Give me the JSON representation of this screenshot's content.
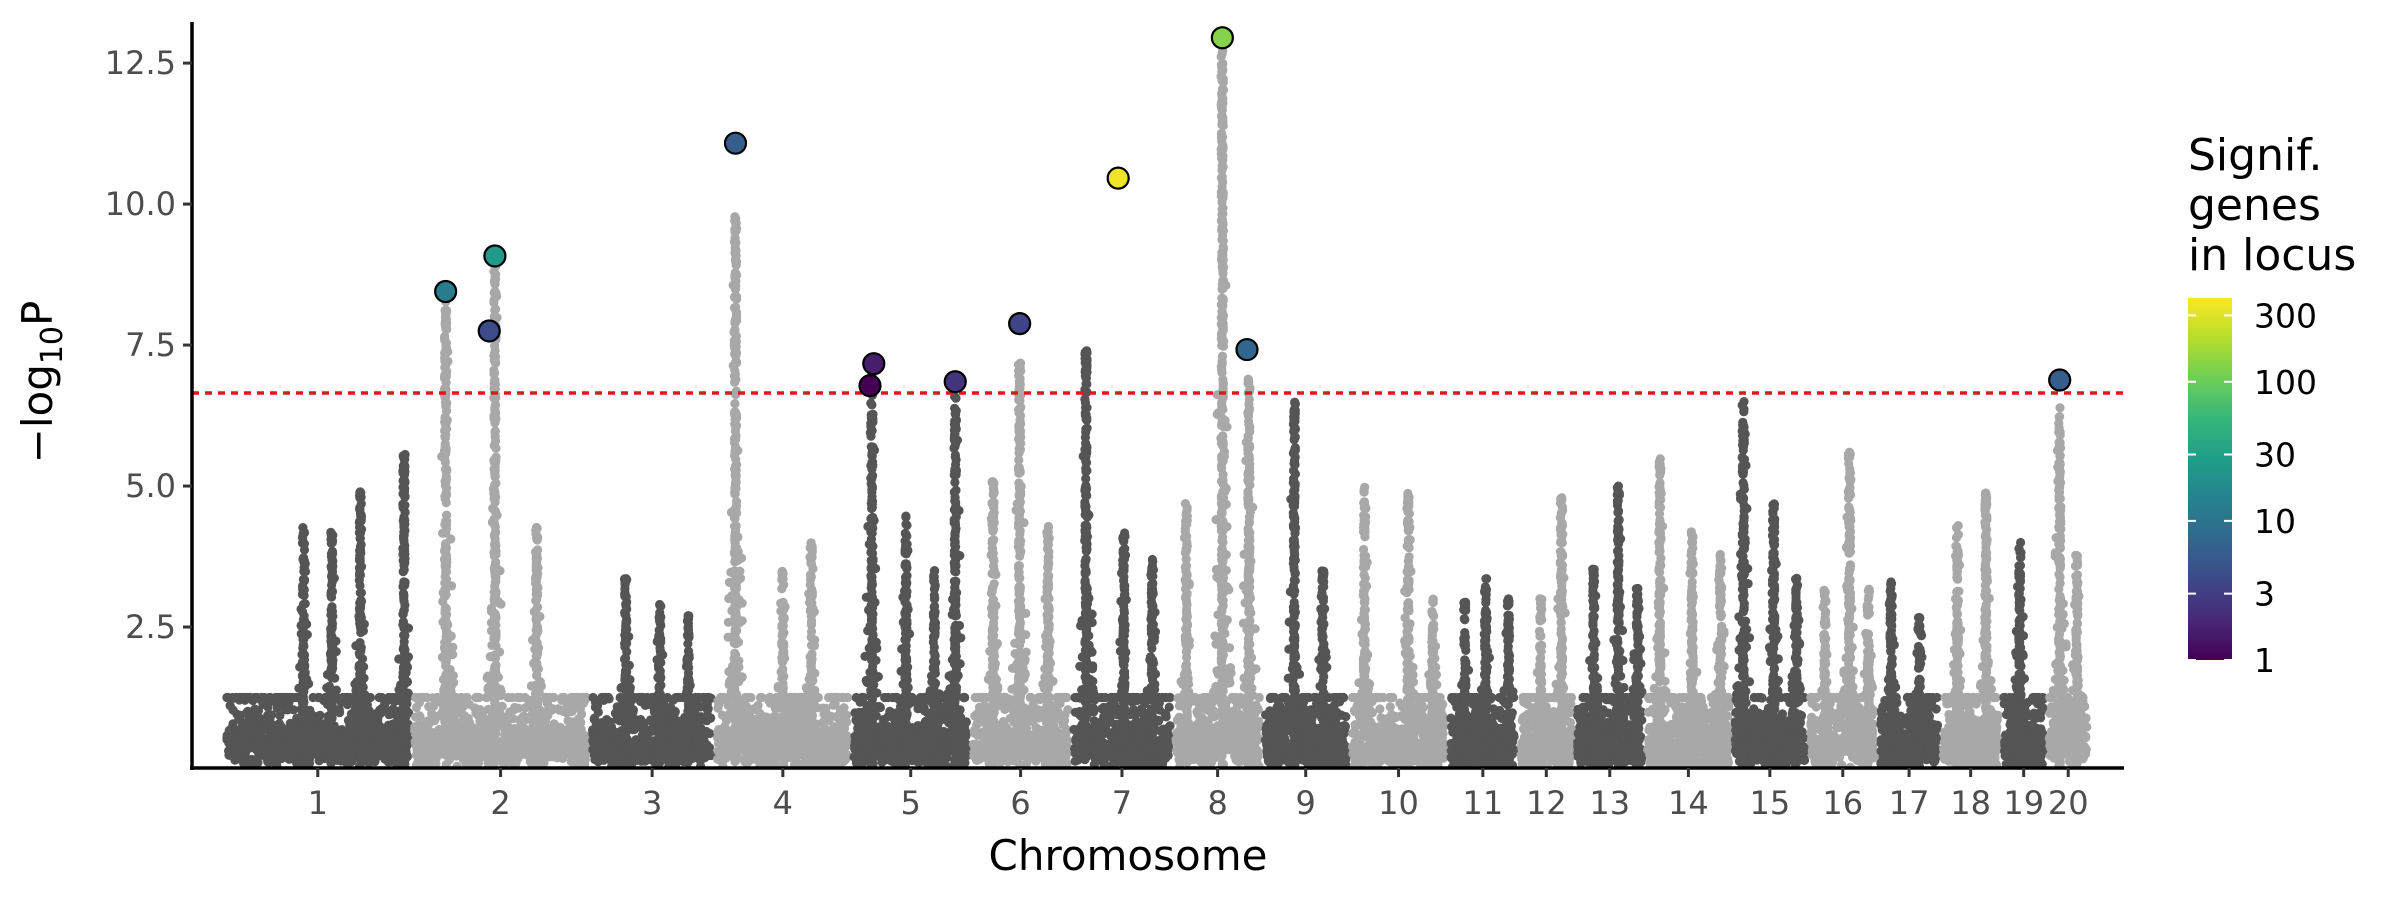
{
  "chart_data": {
    "type": "scatter",
    "subtype": "manhattan",
    "title": "",
    "xlabel": "Chromosome",
    "ylabel_parts": [
      "−log",
      "10",
      "P"
    ],
    "ylim": [
      0,
      13.3
    ],
    "y_ticks": [
      2.5,
      5.0,
      7.5,
      10.0,
      12.5
    ],
    "y_tick_labels": [
      "2.5",
      "5.0",
      "7.5",
      "10.0",
      "12.5"
    ],
    "significance_threshold": 6.65,
    "colors": {
      "dark": "#555555",
      "light": "#a8a8a8",
      "threshold": "#e8141c",
      "axis": "#000000"
    },
    "chromosomes": [
      {
        "label": "1",
        "start": 0.0,
        "end": 9.9,
        "peaks": [
          [
            4.2,
            4.3
          ],
          [
            5.7,
            4.2
          ],
          [
            7.2,
            4.9
          ],
          [
            9.5,
            5.6
          ]
        ]
      },
      {
        "label": "2",
        "start": 9.9,
        "end": 19.3,
        "peaks": [
          [
            11.7,
            8.3
          ],
          [
            14.3,
            9.0
          ],
          [
            16.5,
            4.3
          ]
        ]
      },
      {
        "label": "3",
        "start": 19.3,
        "end": 25.9,
        "peaks": [
          [
            21.2,
            3.4
          ],
          [
            23.0,
            2.9
          ],
          [
            24.5,
            2.7
          ]
        ]
      },
      {
        "label": "4",
        "start": 25.9,
        "end": 33.1,
        "peaks": [
          [
            27.0,
            9.8
          ],
          [
            29.5,
            3.5
          ],
          [
            31.0,
            4.0
          ]
        ]
      },
      {
        "label": "5",
        "start": 33.1,
        "end": 39.4,
        "peaks": [
          [
            34.2,
            7.0
          ],
          [
            36.0,
            4.5
          ],
          [
            37.5,
            3.5
          ],
          [
            38.6,
            6.6
          ]
        ]
      },
      {
        "label": "6",
        "start": 39.4,
        "end": 44.7,
        "peaks": [
          [
            40.6,
            5.1
          ],
          [
            42.0,
            7.2
          ],
          [
            43.5,
            4.3
          ]
        ]
      },
      {
        "label": "7",
        "start": 44.7,
        "end": 50.1,
        "peaks": [
          [
            45.5,
            7.4
          ],
          [
            47.5,
            4.2
          ],
          [
            49.0,
            3.7
          ]
        ]
      },
      {
        "label": "8",
        "start": 50.1,
        "end": 54.8,
        "peaks": [
          [
            50.8,
            4.7
          ],
          [
            52.7,
            12.8
          ],
          [
            54.1,
            6.9
          ]
        ]
      },
      {
        "label": "9",
        "start": 54.8,
        "end": 59.4,
        "peaks": [
          [
            56.5,
            6.5
          ],
          [
            58.0,
            3.5
          ]
        ]
      },
      {
        "label": "10",
        "start": 59.4,
        "end": 64.6,
        "peaks": [
          [
            60.2,
            5.0
          ],
          [
            62.5,
            4.9
          ],
          [
            63.8,
            3.0
          ]
        ]
      },
      {
        "label": "11",
        "start": 64.6,
        "end": 68.3,
        "peaks": [
          [
            65.5,
            3.0
          ],
          [
            66.6,
            3.4
          ],
          [
            67.8,
            3.0
          ]
        ]
      },
      {
        "label": "12",
        "start": 68.3,
        "end": 71.3,
        "peaks": [
          [
            69.5,
            3.0
          ],
          [
            70.6,
            4.8
          ]
        ]
      },
      {
        "label": "13",
        "start": 71.3,
        "end": 75.0,
        "peaks": [
          [
            72.3,
            3.6
          ],
          [
            73.6,
            5.0
          ],
          [
            74.6,
            3.2
          ]
        ]
      },
      {
        "label": "14",
        "start": 75.0,
        "end": 79.6,
        "peaks": [
          [
            75.8,
            5.5
          ],
          [
            77.5,
            4.2
          ],
          [
            79.0,
            3.8
          ]
        ]
      },
      {
        "label": "15",
        "start": 79.6,
        "end": 83.6,
        "peaks": [
          [
            80.2,
            6.5
          ],
          [
            81.8,
            4.7
          ],
          [
            83.0,
            3.4
          ]
        ]
      },
      {
        "label": "16",
        "start": 83.6,
        "end": 87.3,
        "peaks": [
          [
            84.5,
            3.2
          ],
          [
            85.8,
            5.6
          ],
          [
            86.8,
            3.2
          ]
        ]
      },
      {
        "label": "17",
        "start": 87.3,
        "end": 90.6,
        "peaks": [
          [
            88.0,
            3.3
          ],
          [
            89.5,
            2.7
          ]
        ]
      },
      {
        "label": "18",
        "start": 90.6,
        "end": 93.8,
        "peaks": [
          [
            91.5,
            4.3
          ],
          [
            93.0,
            4.9
          ]
        ]
      },
      {
        "label": "19",
        "start": 93.8,
        "end": 96.2,
        "peaks": [
          [
            94.8,
            4.0
          ]
        ]
      },
      {
        "label": "20",
        "start": 96.2,
        "end": 98.5,
        "peaks": [
          [
            96.9,
            6.4
          ],
          [
            97.8,
            3.8
          ]
        ]
      }
    ],
    "lead_snps": [
      {
        "x": 11.7,
        "y": 8.45,
        "genes": 12
      },
      {
        "x": 14.0,
        "y": 7.75,
        "genes": 4
      },
      {
        "x": 14.3,
        "y": 9.08,
        "genes": 25
      },
      {
        "x": 27.0,
        "y": 11.08,
        "genes": 6
      },
      {
        "x": 34.1,
        "y": 6.78,
        "genes": 1
      },
      {
        "x": 34.3,
        "y": 7.17,
        "genes": 1.6
      },
      {
        "x": 38.6,
        "y": 6.85,
        "genes": 2.5
      },
      {
        "x": 42.0,
        "y": 7.88,
        "genes": 3.5
      },
      {
        "x": 47.2,
        "y": 10.46,
        "genes": 350
      },
      {
        "x": 52.7,
        "y": 12.95,
        "genes": 130
      },
      {
        "x": 54.0,
        "y": 7.42,
        "genes": 7
      },
      {
        "x": 96.9,
        "y": 6.88,
        "genes": 6
      }
    ],
    "legend": {
      "title_lines": [
        "Signif.",
        "genes",
        "in locus"
      ],
      "scale": "log",
      "range": [
        1,
        400
      ],
      "ticks": [
        1,
        3,
        10,
        30,
        100,
        300
      ],
      "tick_labels": [
        "1",
        "3",
        "10",
        "30",
        "100",
        "300"
      ],
      "colormap": "viridis",
      "stops": [
        "#440154",
        "#482878",
        "#3e4989",
        "#31688e",
        "#26828e",
        "#1f9e89",
        "#35b779",
        "#6ece58",
        "#b5de2b",
        "#fde725"
      ]
    }
  }
}
